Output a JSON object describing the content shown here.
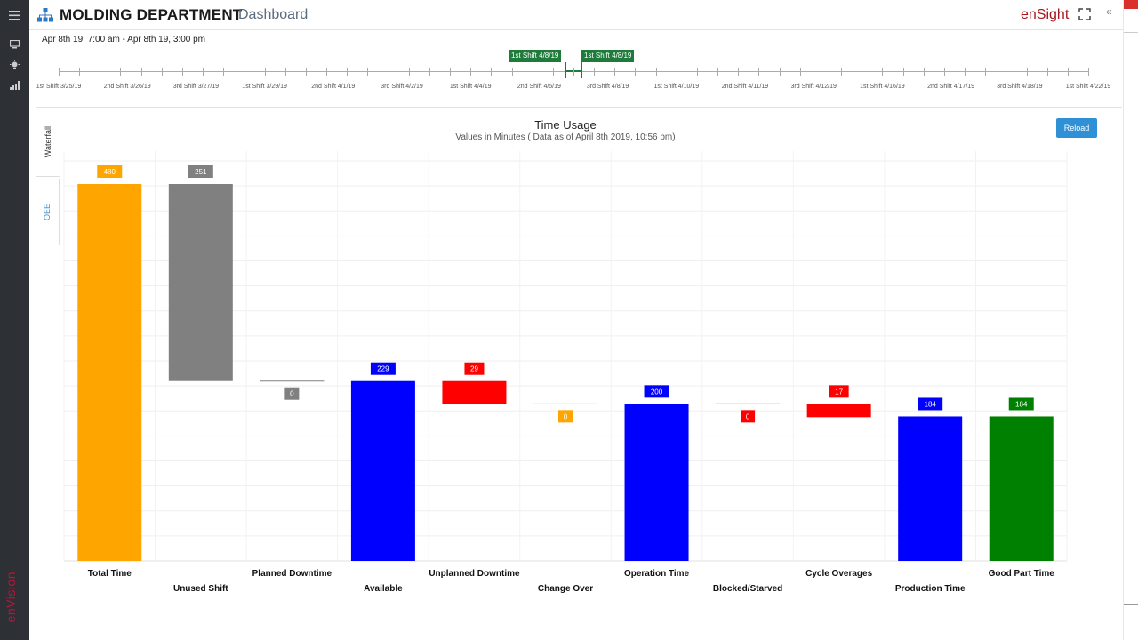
{
  "header": {
    "title": "MOLDING DEPARTMENT",
    "subtitle": "Dashboard",
    "brand": "enSight",
    "collapse_glyph": "«"
  },
  "rail": {
    "brand": "enVision",
    "icons": [
      "menu-icon",
      "monitor-icon",
      "lightbulb-icon",
      "signal-bars-icon"
    ]
  },
  "date_range": "Apr 8th 19, 7:00 am - Apr 8th 19, 3:00 pm",
  "timeline": {
    "labels": [
      "1st Shift 3/25/19",
      "2nd Shift 3/26/19",
      "3rd Shift 3/27/19",
      "1st Shift 3/29/19",
      "2nd Shift 4/1/19",
      "3rd Shift 4/2/19",
      "1st Shift 4/4/19",
      "2nd Shift 4/5/19",
      "3rd Shift 4/8/19",
      "1st Shift 4/10/19",
      "2nd Shift 4/11/19",
      "3rd Shift 4/12/19",
      "1st Shift 4/16/19",
      "2nd Shift 4/17/19",
      "3rd Shift 4/18/19",
      "1st Shift 4/22/19"
    ],
    "range_start_flag": "1st Shift 4/8/19",
    "range_end_flag": "1st Shift 4/8/19"
  },
  "tabs": {
    "active": "Waterfall",
    "inactive": "OEE"
  },
  "reload_label": "Reload",
  "colors": {
    "orange": "#FFA500",
    "gray": "#808080",
    "blue": "#0000FF",
    "red": "#FF0000",
    "green": "#008000",
    "accent": "#1e7b3c",
    "brand": "#a5161f"
  },
  "chart_data": {
    "type": "bar",
    "title": "Time Usage",
    "subtitle": "Values in Minutes ( Data as of April 8th 2019, 10:56 pm)",
    "categories": [
      "Total Time",
      "Unused Shift",
      "Planned Downtime",
      "Available",
      "Unplanned Downtime",
      "Change Over",
      "Operation Time",
      "Blocked/Starved",
      "Cycle Overages",
      "Production Time",
      "Good Part Time"
    ],
    "values": [
      480,
      251,
      0,
      229,
      29,
      0,
      200,
      0,
      17,
      184,
      184
    ],
    "bar_types": [
      "total",
      "decrease",
      "decrease",
      "total",
      "decrease",
      "decrease",
      "total",
      "decrease",
      "decrease",
      "total",
      "total"
    ],
    "series_colors": [
      "#FFA500",
      "#808080",
      "#808080",
      "#0000FF",
      "#FF0000",
      "#FFA500",
      "#0000FF",
      "#FF0000",
      "#FF0000",
      "#0000FF",
      "#008000"
    ],
    "ylim": [
      0,
      480
    ],
    "grid": true,
    "legend": "none"
  }
}
